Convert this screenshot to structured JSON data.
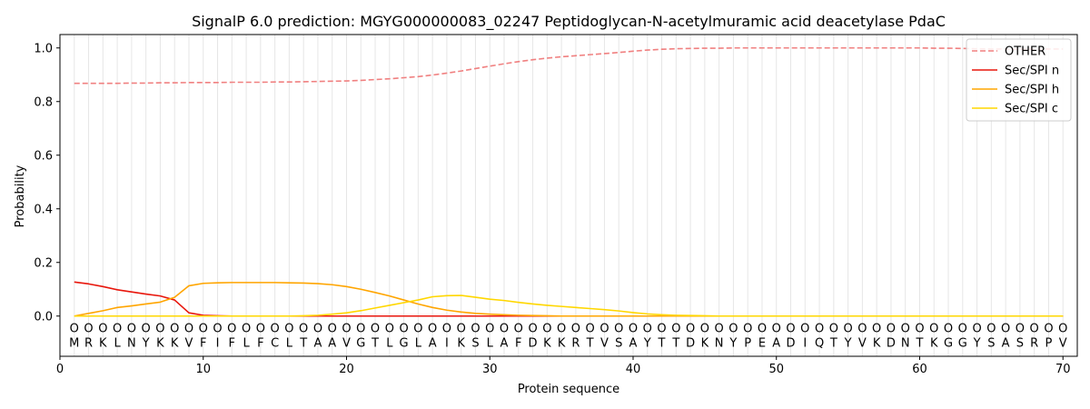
{
  "chart_data": {
    "type": "line",
    "title": "SignalP 6.0 prediction: MGYG000000083_02247 Peptidoglycan-N-acetylmuramic acid deacetylase PdaC",
    "xlabel": "Protein sequence",
    "ylabel": "Probability",
    "xlim": [
      0,
      71
    ],
    "ylim": [
      -0.15,
      1.05
    ],
    "xticks": [
      0,
      10,
      20,
      30,
      40,
      50,
      60,
      70
    ],
    "yticks": [
      0.0,
      0.2,
      0.4,
      0.6,
      0.8,
      1.0
    ],
    "ytick_labels": [
      "0.0",
      "0.2",
      "0.4",
      "0.6",
      "0.8",
      "1.0"
    ],
    "grid": "vertical lines at each residue",
    "legend_position": "top-right",
    "sequence": [
      "M",
      "R",
      "K",
      "L",
      "N",
      "Y",
      "K",
      "K",
      "V",
      "F",
      "I",
      "F",
      "L",
      "F",
      "C",
      "L",
      "T",
      "A",
      "A",
      "V",
      "G",
      "T",
      "L",
      "G",
      "L",
      "A",
      "I",
      "K",
      "S",
      "L",
      "A",
      "F",
      "D",
      "K",
      "K",
      "R",
      "T",
      "V",
      "S",
      "A",
      "Y",
      "T",
      "T",
      "D",
      "K",
      "N",
      "Y",
      "P",
      "E",
      "A",
      "D",
      "I",
      "Q",
      "T",
      "Y",
      "V",
      "K",
      "D",
      "N",
      "T",
      "K",
      "G",
      "G",
      "Y",
      "S",
      "A",
      "S",
      "R",
      "P",
      "V"
    ],
    "region_marker": "O",
    "series": [
      {
        "name": "OTHER",
        "color": "#f08080",
        "dash": "dashed",
        "values": [
          0.868,
          0.868,
          0.868,
          0.868,
          0.869,
          0.869,
          0.87,
          0.87,
          0.871,
          0.871,
          0.871,
          0.872,
          0.872,
          0.872,
          0.873,
          0.873,
          0.874,
          0.875,
          0.876,
          0.877,
          0.879,
          0.882,
          0.885,
          0.889,
          0.893,
          0.899,
          0.906,
          0.914,
          0.923,
          0.932,
          0.941,
          0.949,
          0.956,
          0.962,
          0.967,
          0.971,
          0.975,
          0.979,
          0.983,
          0.988,
          0.992,
          0.995,
          0.997,
          0.998,
          0.999,
          0.999,
          1.0,
          1.0,
          1.0,
          1.0,
          1.0,
          1.0,
          1.0,
          1.0,
          1.0,
          1.0,
          1.0,
          1.0,
          1.0,
          1.0,
          0.999,
          0.999,
          0.998,
          0.997,
          0.996,
          0.996,
          0.996,
          0.996,
          0.996,
          0.996
        ]
      },
      {
        "name": "Sec/SPI n",
        "color": "#e8160c",
        "dash": "solid",
        "values": [
          0.127,
          0.12,
          0.11,
          0.098,
          0.09,
          0.082,
          0.075,
          0.06,
          0.012,
          0.003,
          0.001,
          0.0,
          0.0,
          0.0,
          0.0,
          0.0,
          0.0,
          0.0,
          0.0,
          0.0,
          0.0,
          0.0,
          0.0,
          0.0,
          0.0,
          0.0,
          0.0,
          0.0,
          0.0,
          0.0,
          0.0,
          0.0,
          0.0,
          0.0,
          0.0,
          0.0,
          0.0,
          0.0,
          0.0,
          0.0,
          0.0,
          0.0,
          0.0,
          0.0,
          0.0,
          0.0,
          0.0,
          0.0,
          0.0,
          0.0,
          0.0,
          0.0,
          0.0,
          0.0,
          0.0,
          0.0,
          0.0,
          0.0,
          0.0,
          0.0,
          0.0,
          0.0,
          0.0,
          0.0,
          0.0,
          0.0,
          0.0,
          0.0,
          0.0,
          0.0
        ]
      },
      {
        "name": "Sec/SPI h",
        "color": "#ffa500",
        "dash": "solid",
        "values": [
          0.0,
          0.01,
          0.02,
          0.032,
          0.038,
          0.045,
          0.052,
          0.07,
          0.113,
          0.122,
          0.124,
          0.125,
          0.125,
          0.125,
          0.125,
          0.124,
          0.123,
          0.121,
          0.117,
          0.11,
          0.1,
          0.088,
          0.075,
          0.06,
          0.045,
          0.032,
          0.022,
          0.015,
          0.01,
          0.007,
          0.005,
          0.003,
          0.002,
          0.001,
          0.0,
          0.0,
          0.0,
          0.0,
          0.0,
          0.0,
          0.0,
          0.0,
          0.0,
          0.0,
          0.0,
          0.0,
          0.0,
          0.0,
          0.0,
          0.0,
          0.0,
          0.0,
          0.0,
          0.0,
          0.0,
          0.0,
          0.0,
          0.0,
          0.0,
          0.0,
          0.0,
          0.0,
          0.0,
          0.0,
          0.0,
          0.0,
          0.0,
          0.0,
          0.0,
          0.0
        ]
      },
      {
        "name": "Sec/SPI c",
        "color": "#ffd700",
        "dash": "solid",
        "values": [
          0.0,
          0.0,
          0.0,
          0.0,
          0.0,
          0.0,
          0.0,
          0.0,
          0.0,
          0.0,
          0.0,
          0.0,
          0.0,
          0.0,
          0.0,
          0.0,
          0.001,
          0.003,
          0.007,
          0.012,
          0.02,
          0.03,
          0.04,
          0.05,
          0.06,
          0.072,
          0.076,
          0.077,
          0.07,
          0.063,
          0.058,
          0.051,
          0.045,
          0.04,
          0.036,
          0.032,
          0.028,
          0.024,
          0.019,
          0.013,
          0.008,
          0.005,
          0.003,
          0.002,
          0.001,
          0.0,
          0.0,
          0.0,
          0.0,
          0.0,
          0.0,
          0.0,
          0.0,
          0.0,
          0.0,
          0.0,
          0.0,
          0.0,
          0.0,
          0.0,
          0.0,
          0.0,
          0.0,
          0.0,
          0.0,
          0.0,
          0.0,
          0.0,
          0.0,
          0.0
        ]
      }
    ]
  }
}
